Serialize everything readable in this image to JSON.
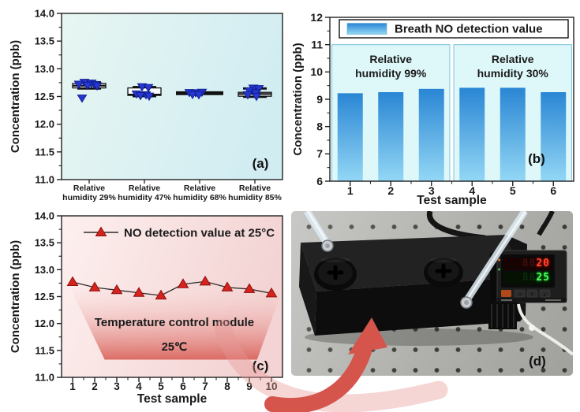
{
  "figure": {
    "panel_labels": {
      "a": "(a)",
      "b": "(b)",
      "c": "(c)",
      "d": "(d)"
    }
  },
  "chart_data": [
    {
      "id": "panel-a",
      "type": "box",
      "title": "",
      "ylabel": "Concentration (ppb)",
      "ylim": [
        11.0,
        14.0
      ],
      "ytick_step": 0.5,
      "grid": false,
      "panel_label": "(a)",
      "categories": [
        [
          "Relative",
          "humidity 29%"
        ],
        [
          "Relative",
          "humidity 47%"
        ],
        [
          "Relative",
          "humidity 68%"
        ],
        [
          "Relative",
          "humidity 85%"
        ]
      ],
      "boxes": [
        {
          "q1": 12.655,
          "median": 12.695,
          "q3": 12.735,
          "whisker_low": 12.645,
          "whisker_high": 12.755,
          "cap_half": 15,
          "points": [
            [
              -6,
              12.755
            ],
            [
              3,
              12.74
            ],
            [
              -13,
              12.72
            ],
            [
              7,
              12.715
            ],
            [
              -2,
              12.7
            ],
            [
              10,
              12.69
            ],
            [
              -9,
              12.47
            ]
          ]
        },
        {
          "q1": 12.52,
          "median": 12.535,
          "q3": 12.655,
          "whisker_low": 12.505,
          "whisker_high": 12.67,
          "cap_half": 15,
          "points": [
            [
              -3,
              12.675
            ],
            [
              5,
              12.66
            ],
            [
              -10,
              12.545
            ],
            [
              2,
              12.53
            ],
            [
              -5,
              12.515
            ],
            [
              6,
              12.505
            ]
          ]
        },
        {
          "q1": 12.55,
          "median": 12.56,
          "q3": 12.575,
          "whisker_low": 12.545,
          "whisker_high": 12.575,
          "cap_half": 30,
          "points": [
            [
              -13,
              12.57
            ],
            [
              -5,
              12.565
            ],
            [
              3,
              12.575
            ],
            [
              -9,
              12.535
            ],
            [
              -1,
              12.53
            ]
          ]
        },
        {
          "q1": 12.505,
          "median": 12.545,
          "q3": 12.575,
          "whisker_low": 12.495,
          "whisker_high": 12.645,
          "cap_half": 15,
          "points": [
            [
              -2,
              12.65
            ],
            [
              5,
              12.64
            ],
            [
              -7,
              12.6
            ],
            [
              1,
              12.565
            ],
            [
              -9,
              12.53
            ],
            [
              2,
              12.5
            ]
          ]
        }
      ],
      "colors": {
        "marker": "#2638cf",
        "marker_edge": "#101e96",
        "box_fill": "#ffffff",
        "box_edge": "#111111",
        "bg_from": "#e7f6f2",
        "bg_to": "#d2edf2"
      }
    },
    {
      "id": "panel-b",
      "type": "bar",
      "title": "",
      "ylabel": "Concentration (ppb)",
      "xlabel": "Test sample",
      "ylim": [
        6,
        12
      ],
      "ytick_step": 1,
      "grid": false,
      "panel_label": "(b)",
      "legend": "Breath NO detection value",
      "legend_position": "top",
      "categories": [
        "1",
        "2",
        "3",
        "4",
        "5",
        "6"
      ],
      "values": [
        9.22,
        9.26,
        9.38,
        9.42,
        9.42,
        9.26
      ],
      "regions": [
        {
          "lines": [
            "Relative",
            "humidity 99%"
          ],
          "from": 0.55,
          "to": 3.45,
          "top": 11
        },
        {
          "lines": [
            "Relative",
            "humidity 30%"
          ],
          "from": 3.55,
          "to": 6.45,
          "top": 11
        }
      ],
      "colors": {
        "bar_top": "#2a86d4",
        "bar_bottom": "#93d7f5",
        "region_fill": "#def8fa",
        "region_edge": "#8ecbe0"
      }
    },
    {
      "id": "panel-c",
      "type": "line",
      "title": "",
      "ylabel": "Concentration (ppb)",
      "xlabel": "Test sample",
      "ylim": [
        11.0,
        14.0
      ],
      "ytick_step": 0.5,
      "grid": false,
      "panel_label": "(c)",
      "legend": "NO detection value at 25°C",
      "x": [
        1,
        2,
        3,
        4,
        5,
        6,
        7,
        8,
        9,
        10
      ],
      "values": [
        12.77,
        12.67,
        12.62,
        12.57,
        12.52,
        12.73,
        12.78,
        12.67,
        12.64,
        12.56
      ],
      "annotation": {
        "shape": "trapezoid",
        "lines": [
          "Temperature control module",
          "25℃"
        ],
        "top_x": [
          0.9,
          10.45
        ],
        "top_y": [
          12.66,
          12.58
        ],
        "bottom_x": [
          2.45,
          9.35
        ],
        "bottom_y": 11.33
      },
      "colors": {
        "marker": "#d6231e",
        "marker_edge": "#8c0f0c",
        "line": "#2b2b2b",
        "bg_from": "#fdf0ef",
        "bg_to": "#f3d3d3",
        "trap_from": "rgba(248,218,216,0.12)",
        "trap_to": "rgba(214,82,74,0.82)"
      }
    }
  ],
  "photo": {
    "label": "(d)",
    "controller": {
      "pv_ghost": "88",
      "pv_value": "20",
      "sv_ghost": "88",
      "sv_value": "25"
    }
  }
}
